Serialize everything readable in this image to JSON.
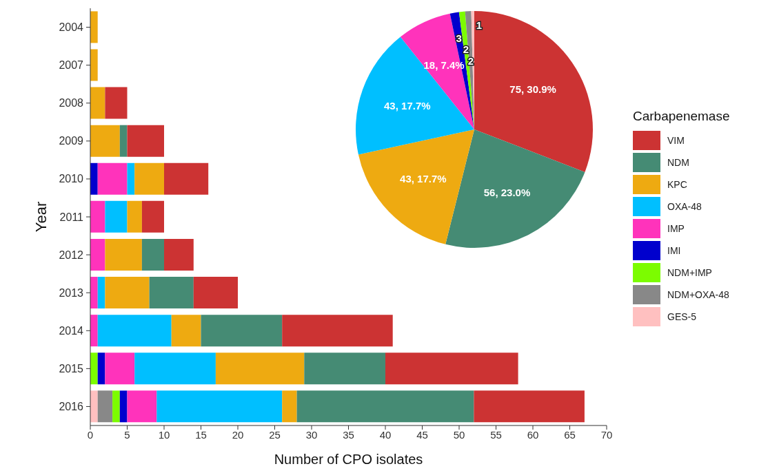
{
  "chart_data": [
    {
      "type": "bar",
      "orientation": "horizontal",
      "stacked": true,
      "xlabel": "Number of CPO isolates",
      "ylabel": "Year",
      "legend_title": "Carbapenemase",
      "legend": "right",
      "categories": [
        "2004",
        "2007",
        "2008",
        "2009",
        "2010",
        "2011",
        "2012",
        "2013",
        "2014",
        "2015",
        "2016"
      ],
      "xlim": [
        0,
        70
      ],
      "xticks": [
        0,
        5,
        10,
        15,
        20,
        25,
        30,
        35,
        40,
        45,
        50,
        55,
        60,
        65,
        70
      ],
      "series": [
        {
          "name": "GES-5",
          "color": "#ffc0c0",
          "values": [
            0,
            0,
            0,
            0,
            0,
            0,
            0,
            0,
            0,
            0,
            1
          ]
        },
        {
          "name": "NDM+OXA-48",
          "color": "#888888",
          "values": [
            0,
            0,
            0,
            0,
            0,
            0,
            0,
            0,
            0,
            0,
            2
          ]
        },
        {
          "name": "NDM+IMP",
          "color": "#7cfc00",
          "values": [
            0,
            0,
            0,
            0,
            0,
            0,
            0,
            0,
            0,
            1,
            1
          ]
        },
        {
          "name": "IMI",
          "color": "#0000cd",
          "values": [
            0,
            0,
            0,
            0,
            1,
            0,
            0,
            0,
            0,
            1,
            1
          ]
        },
        {
          "name": "IMP",
          "color": "#ff33bb",
          "values": [
            0,
            0,
            0,
            0,
            4,
            2,
            2,
            1,
            1,
            4,
            4
          ]
        },
        {
          "name": "OXA-48",
          "color": "#00bfff",
          "values": [
            0,
            0,
            0,
            0,
            1,
            3,
            0,
            1,
            10,
            11,
            17
          ]
        },
        {
          "name": "KPC",
          "color": "#eeaa11",
          "values": [
            1,
            1,
            2,
            4,
            4,
            2,
            5,
            6,
            4,
            12,
            2
          ]
        },
        {
          "name": "NDM",
          "color": "#458b74",
          "values": [
            0,
            0,
            0,
            1,
            0,
            0,
            3,
            6,
            11,
            11,
            24
          ]
        },
        {
          "name": "VIM",
          "color": "#cc3333",
          "values": [
            0,
            0,
            3,
            5,
            6,
            3,
            4,
            6,
            15,
            18,
            15
          ]
        }
      ]
    },
    {
      "type": "pie",
      "categories": [
        null,
        null,
        null,
        null,
        null,
        null,
        null,
        null,
        null
      ],
      "values": [
        75,
        56,
        43,
        43,
        18,
        3,
        2,
        2,
        1
      ],
      "colors": [
        "#cc3333",
        "#458b74",
        "#eeaa11",
        "#00bfff",
        "#ff33bb",
        "#0000cd",
        "#7cfc00",
        "#888888",
        "#ffc0c0"
      ],
      "value_labels": [
        "75, 30.9%",
        "56, 23.0%",
        "43, 17.7%",
        "43, 17.7%",
        "18, 7.4%",
        "3",
        "2",
        "2",
        "1"
      ]
    }
  ]
}
